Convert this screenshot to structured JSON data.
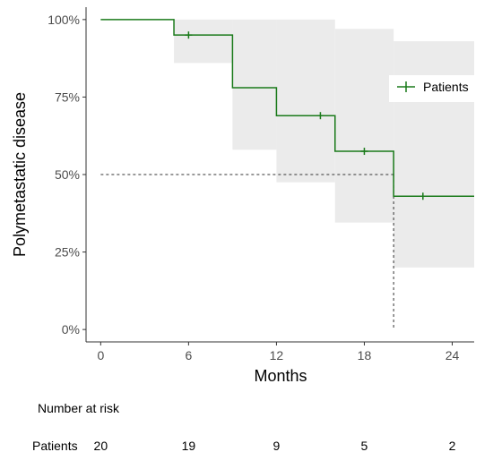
{
  "chart_data": {
    "type": "line",
    "subtype": "kaplan-meier",
    "title": "",
    "xlabel": "Months",
    "ylabel": "Polymetastatic disease",
    "xlim": [
      -1,
      25.5
    ],
    "ylim": [
      -0.04,
      1.04
    ],
    "x_ticks": [
      0,
      6,
      12,
      18,
      24
    ],
    "x_tick_labels": [
      "0",
      "6",
      "12",
      "18",
      "24"
    ],
    "y_ticks": [
      0,
      0.25,
      0.5,
      0.75,
      1.0
    ],
    "y_tick_labels": [
      "0%",
      "25%",
      "50%",
      "75%",
      "100%"
    ],
    "grid": false,
    "legend_position": "right",
    "series": [
      {
        "name": "Patients",
        "color": "#1a7a1a",
        "steps": [
          {
            "x": 0,
            "y": 1.0
          },
          {
            "x": 5,
            "y": 0.95
          },
          {
            "x": 9,
            "y": 0.78
          },
          {
            "x": 12,
            "y": 0.69
          },
          {
            "x": 16,
            "y": 0.575
          },
          {
            "x": 20,
            "y": 0.43
          }
        ],
        "x_end": 25.5,
        "ci": [
          {
            "x0": 5,
            "x1": 9,
            "lower": 0.86,
            "upper": 1.0
          },
          {
            "x0": 9,
            "x1": 12,
            "lower": 0.58,
            "upper": 1.0
          },
          {
            "x0": 12,
            "x1": 16,
            "lower": 0.475,
            "upper": 1.0
          },
          {
            "x0": 16,
            "x1": 20,
            "lower": 0.345,
            "upper": 0.97
          },
          {
            "x0": 20,
            "x1": 25.5,
            "lower": 0.2,
            "upper": 0.93
          }
        ],
        "censor_points": [
          {
            "x": 6,
            "y": 0.95
          },
          {
            "x": 15,
            "y": 0.69
          },
          {
            "x": 18,
            "y": 0.575
          },
          {
            "x": 22,
            "y": 0.43
          }
        ]
      }
    ],
    "median_guide": {
      "y": 0.5,
      "x": 20
    },
    "risk_table": {
      "title": "Number at risk",
      "rows": [
        {
          "label": "Patients",
          "values": [
            20,
            19,
            9,
            5,
            2
          ]
        }
      ],
      "x": [
        0,
        6,
        12,
        18,
        24
      ]
    },
    "colors": {
      "line": "#1a7a1a",
      "ci_fill": "#ebebeb",
      "axis": "#333333",
      "guide": "#333333"
    }
  }
}
